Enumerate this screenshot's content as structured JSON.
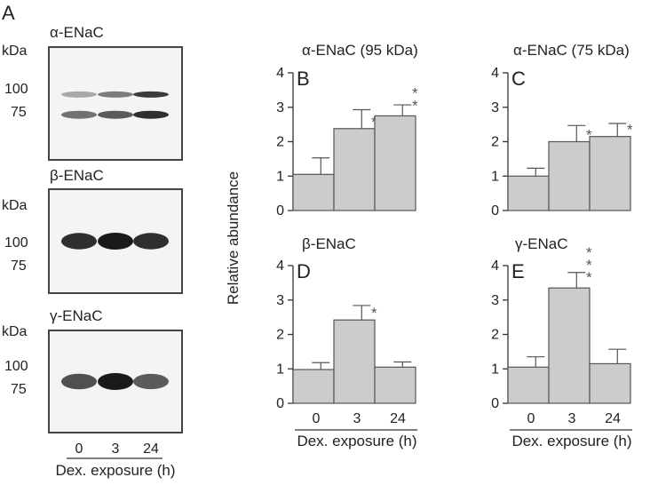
{
  "panel_a": {
    "letter": "A",
    "kda_label": "kDa",
    "blots": [
      {
        "title": "α-ENaC",
        "markers": [
          "100",
          "75"
        ],
        "bands": [
          {
            "lane": 0,
            "intensity": 0.35,
            "kind": "upper"
          },
          {
            "lane": 1,
            "intensity": 0.55,
            "kind": "upper"
          },
          {
            "lane": 2,
            "intensity": 0.85,
            "kind": "upper"
          },
          {
            "lane": 0,
            "intensity": 0.6,
            "kind": "lower"
          },
          {
            "lane": 1,
            "intensity": 0.7,
            "kind": "lower"
          },
          {
            "lane": 2,
            "intensity": 0.9,
            "kind": "lower"
          }
        ]
      },
      {
        "title": "β-ENaC",
        "markers": [
          "100",
          "75"
        ],
        "bands": [
          {
            "lane": 0,
            "intensity": 0.9,
            "kind": "single"
          },
          {
            "lane": 1,
            "intensity": 1.0,
            "kind": "single"
          },
          {
            "lane": 2,
            "intensity": 0.9,
            "kind": "single"
          }
        ]
      },
      {
        "title": "γ-ENaC",
        "markers": [
          "100",
          "75"
        ],
        "bands": [
          {
            "lane": 0,
            "intensity": 0.75,
            "kind": "single"
          },
          {
            "lane": 1,
            "intensity": 1.0,
            "kind": "single"
          },
          {
            "lane": 2,
            "intensity": 0.7,
            "kind": "single"
          }
        ]
      }
    ],
    "lanes": [
      "0",
      "3",
      "24"
    ],
    "xlabel": "Dex. exposure (h)"
  },
  "ylabel": "Relative abundance",
  "xlabel": "Dex. exposure (h)",
  "chart_data": [
    {
      "type": "bar",
      "letter": "B",
      "title": "α-ENaC (95 kDa)",
      "categories": [
        "0",
        "3",
        "24"
      ],
      "values": [
        1.05,
        2.38,
        2.75
      ],
      "errors": [
        0.48,
        0.55,
        0.32
      ],
      "stars": [
        "",
        "*",
        "**"
      ],
      "ylim": [
        0,
        4
      ],
      "yticks": [
        "0",
        "1",
        "2",
        "3",
        "4"
      ],
      "show_xlabels": false
    },
    {
      "type": "bar",
      "letter": "C",
      "title": "α-ENaC (75 kDa)",
      "categories": [
        "0",
        "3",
        "24"
      ],
      "values": [
        1.0,
        2.0,
        2.15
      ],
      "errors": [
        0.23,
        0.47,
        0.38
      ],
      "stars": [
        "",
        "*",
        "*"
      ],
      "ylim": [
        0,
        4
      ],
      "yticks": [
        "0",
        "1",
        "2",
        "3",
        "4"
      ],
      "show_xlabels": false
    },
    {
      "type": "bar",
      "letter": "D",
      "title": "β-ENaC",
      "categories": [
        "0",
        "3",
        "24"
      ],
      "values": [
        0.98,
        2.42,
        1.05
      ],
      "errors": [
        0.2,
        0.42,
        0.15
      ],
      "stars": [
        "",
        "*",
        ""
      ],
      "ylim": [
        0,
        4
      ],
      "yticks": [
        "0",
        "1",
        "2",
        "3",
        "4"
      ],
      "show_xlabels": true
    },
    {
      "type": "bar",
      "letter": "E",
      "title": "γ-ENaC",
      "categories": [
        "0",
        "3",
        "24"
      ],
      "values": [
        1.05,
        3.35,
        1.15
      ],
      "errors": [
        0.3,
        0.45,
        0.42
      ],
      "stars": [
        "",
        "***",
        ""
      ],
      "ylim": [
        0,
        4
      ],
      "yticks": [
        "0",
        "1",
        "2",
        "3",
        "4"
      ],
      "show_xlabels": true
    }
  ],
  "colors": {
    "bar_fill": "#cccccc",
    "bar_stroke": "#555555",
    "axis": "#333333",
    "blot_bg": "#f4f4f4",
    "band": "#1a1a1a"
  }
}
